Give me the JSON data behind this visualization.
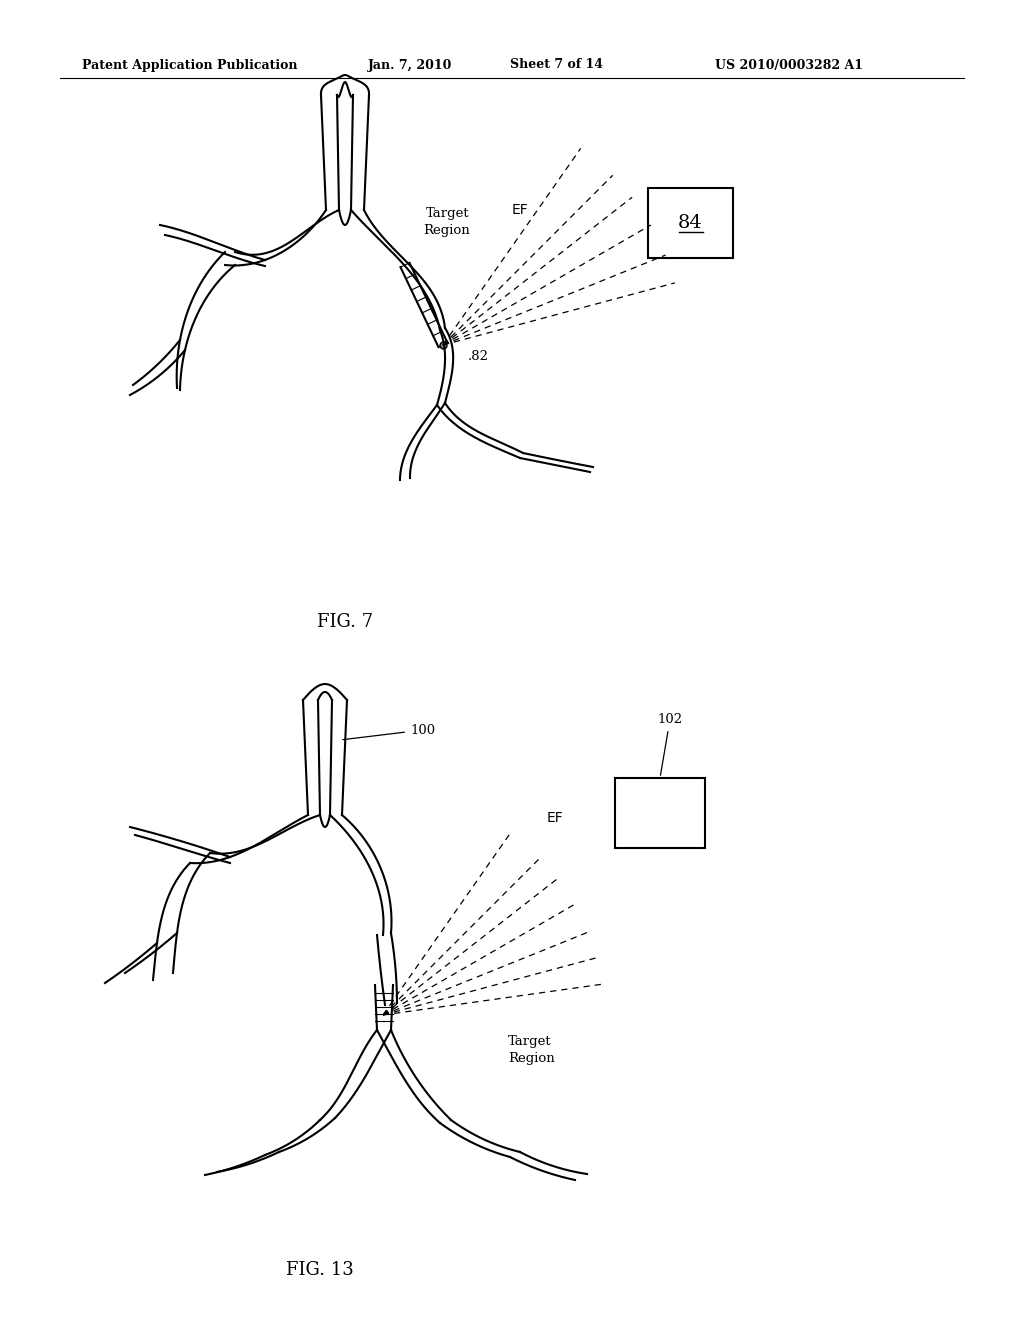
{
  "bg_color": "#ffffff",
  "line_color": "#000000",
  "header_text": "Patent Application Publication",
  "header_date": "Jan. 7, 2010",
  "header_sheet": "Sheet 7 of 14",
  "header_patent": "US 2010/0003282 A1",
  "fig7_label": "FIG. 7",
  "fig13_label": "FIG. 13",
  "label_84": "84",
  "label_82": ".82",
  "label_100": "100",
  "label_102": "102",
  "label_ef1": "EF",
  "label_ef2": "EF",
  "label_target1": "Target\nRegion",
  "label_target2": "Target\nRegion"
}
